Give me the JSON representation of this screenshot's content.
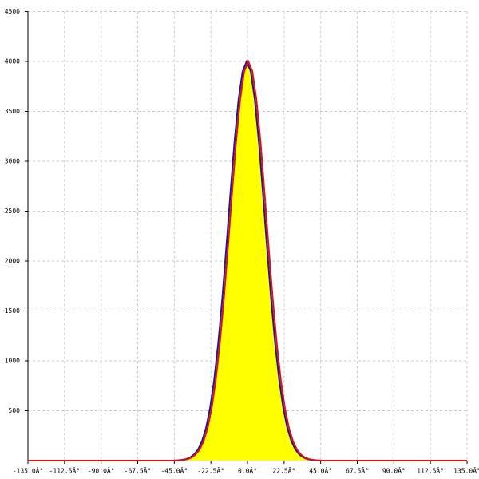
{
  "chart_data": {
    "type": "area-line",
    "xlim": [
      -135,
      135
    ],
    "ylim": [
      0,
      4500
    ],
    "xticks": [
      {
        "value": -135,
        "label": "-135.0Â°"
      },
      {
        "value": -112.5,
        "label": "-112.5Â°"
      },
      {
        "value": -90,
        "label": "-90.0Â°"
      },
      {
        "value": -67.5,
        "label": "-67.5Â°"
      },
      {
        "value": -45,
        "label": "-45.0Â°"
      },
      {
        "value": -22.5,
        "label": "-22.5Â°"
      },
      {
        "value": 0,
        "label": "0.0Â°"
      },
      {
        "value": 22.5,
        "label": "22.5Â°"
      },
      {
        "value": 45,
        "label": "45.0Â°"
      },
      {
        "value": 67.5,
        "label": "67.5Â°"
      },
      {
        "value": 90,
        "label": "90.0Â°"
      },
      {
        "value": 112.5,
        "label": "112.5Â°"
      },
      {
        "value": 135,
        "label": "135.0Â°"
      }
    ],
    "yticks": [
      500,
      1000,
      1500,
      2000,
      2500,
      3000,
      3500,
      4000,
      4500
    ],
    "grid": true,
    "series": [
      {
        "color": "#ffff00",
        "fill": true,
        "x": [
          -50,
          -47.5,
          -45,
          -42.5,
          -40,
          -37.5,
          -35,
          -32.5,
          -30,
          -27.5,
          -25,
          -22.5,
          -20,
          -17.5,
          -15,
          -12.5,
          -10,
          -7.5,
          -5,
          -2.5,
          0,
          2.5,
          5,
          7.5,
          10,
          12.5,
          15,
          17.5,
          20,
          22.5,
          25,
          27.5,
          30,
          32.5,
          35,
          37.5,
          40,
          42.5,
          45,
          47.5,
          50
        ],
        "values": [
          0,
          0,
          1,
          3,
          7,
          14,
          30,
          59,
          109,
          194,
          328,
          528,
          808,
          1175,
          1626,
          2141,
          2681,
          3195,
          3619,
          3901,
          4000,
          3901,
          3619,
          3195,
          2681,
          2141,
          1626,
          1175,
          808,
          528,
          328,
          194,
          109,
          59,
          30,
          14,
          7,
          3,
          1,
          0,
          0
        ]
      },
      {
        "color": "#1a1aa0",
        "fill": false,
        "x": [
          -50.5,
          -48,
          -45.5,
          -43,
          -40.5,
          -38,
          -35.5,
          -33,
          -30.5,
          -28,
          -25.5,
          -23,
          -20.5,
          -18,
          -15.5,
          -13,
          -10.5,
          -8,
          -5.5,
          -3,
          -0.5,
          2,
          4.5,
          7,
          9.5,
          12,
          14.5,
          17,
          19.5,
          22,
          24.5,
          27,
          29.5,
          32,
          34.5,
          37,
          39.5,
          42,
          44.5,
          47,
          49.5
        ],
        "values": [
          0,
          0,
          1,
          3,
          7,
          14,
          30,
          59,
          109,
          194,
          328,
          528,
          808,
          1175,
          1626,
          2141,
          2681,
          3195,
          3619,
          3901,
          4000,
          3901,
          3619,
          3195,
          2681,
          2141,
          1626,
          1175,
          808,
          528,
          328,
          194,
          109,
          59,
          30,
          14,
          7,
          3,
          1,
          0,
          0
        ]
      },
      {
        "color": "#e01010",
        "fill": false,
        "x": [
          -135,
          -49.5,
          -47,
          -44.5,
          -42,
          -39.5,
          -37,
          -34.5,
          -32,
          -29.5,
          -27,
          -24.5,
          -22,
          -19.5,
          -17,
          -14.5,
          -12,
          -9.5,
          -7,
          -4.5,
          -2,
          0.5,
          3,
          5.5,
          8,
          10.5,
          13,
          15.5,
          18,
          20.5,
          23,
          25.5,
          28,
          30.5,
          33,
          35.5,
          38,
          40.5,
          43,
          45.5,
          48,
          50.5,
          135
        ],
        "values": [
          0,
          0,
          0,
          1,
          3,
          7,
          14,
          30,
          59,
          109,
          194,
          328,
          528,
          808,
          1175,
          1626,
          2141,
          2681,
          3195,
          3619,
          3901,
          4000,
          3901,
          3619,
          3195,
          2681,
          2141,
          1626,
          1175,
          808,
          528,
          328,
          194,
          109,
          59,
          30,
          14,
          7,
          3,
          1,
          0,
          0,
          0
        ]
      }
    ]
  }
}
